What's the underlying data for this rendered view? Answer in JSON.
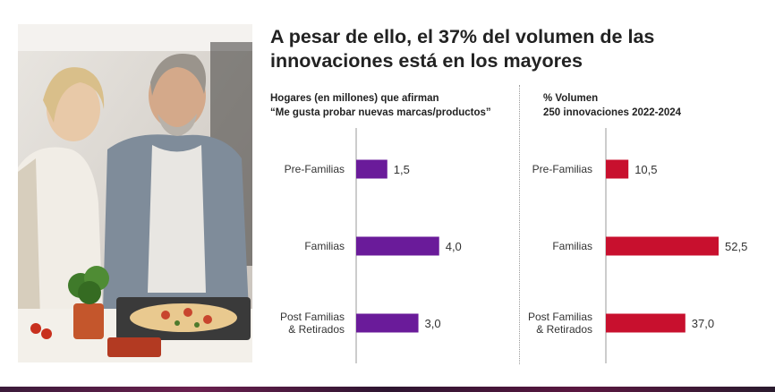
{
  "header": {
    "title_line1": "A pesar de ello, el 37% del volumen de las",
    "title_line2": "innovaciones está en los mayores"
  },
  "photo": {
    "alt": ""
  },
  "chart_data": [
    {
      "type": "bar",
      "orientation": "horizontal",
      "title_line1": "Hogares (en millones) que afirman",
      "title_line2": "“Me gusta probar nuevas marcas/productos”",
      "categories": [
        {
          "line1": "Pre-Familias",
          "line2": ""
        },
        {
          "line1": "Familias",
          "line2": ""
        },
        {
          "line1": "Post Familias",
          "line2": "& Retirados"
        }
      ],
      "values": [
        1.5,
        4.0,
        3.0
      ],
      "value_labels": [
        "1,5",
        "4,0",
        "3,0"
      ],
      "color": "#6a1b9a",
      "xlim": [
        0,
        4.4
      ]
    },
    {
      "type": "bar",
      "orientation": "horizontal",
      "title_line1": "% Volumen",
      "title_line2": "250 innovaciones 2022-2024",
      "categories": [
        {
          "line1": "Pre-Familias",
          "line2": ""
        },
        {
          "line1": "Familias",
          "line2": ""
        },
        {
          "line1": "Post Familias",
          "line2": "& Retirados"
        }
      ],
      "values": [
        10.5,
        52.5,
        37.0
      ],
      "value_labels": [
        "10,5",
        "52,5",
        "37,0"
      ],
      "color": "#c8102e",
      "xlim": [
        0,
        55
      ]
    }
  ]
}
